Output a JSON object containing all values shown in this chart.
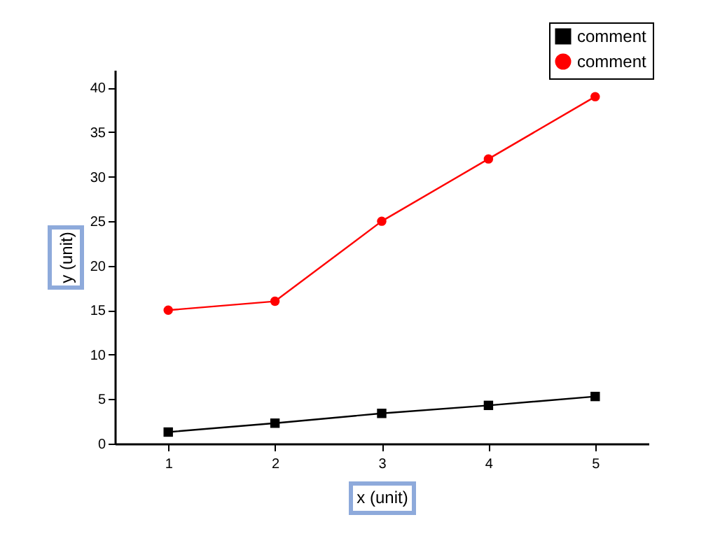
{
  "chart_data": {
    "type": "line",
    "xlabel": "x (unit)",
    "ylabel": "y (unit)",
    "x": [
      1,
      2,
      3,
      4,
      5
    ],
    "series": [
      {
        "name": "comment",
        "color": "#000000",
        "marker": "square",
        "values": [
          1.3,
          2.3,
          3.4,
          4.3,
          5.3
        ]
      },
      {
        "name": "comment",
        "color": "#ff0000",
        "marker": "circle",
        "values": [
          15,
          16,
          25,
          32,
          39
        ]
      }
    ],
    "xlim": [
      0.5,
      5.5
    ],
    "xticks": [
      1,
      2,
      3,
      4,
      5
    ],
    "ylim": [
      0,
      42
    ],
    "yticks": [
      0,
      5,
      10,
      15,
      20,
      25,
      30,
      35,
      40
    ],
    "grid": false,
    "legend": "top right"
  }
}
